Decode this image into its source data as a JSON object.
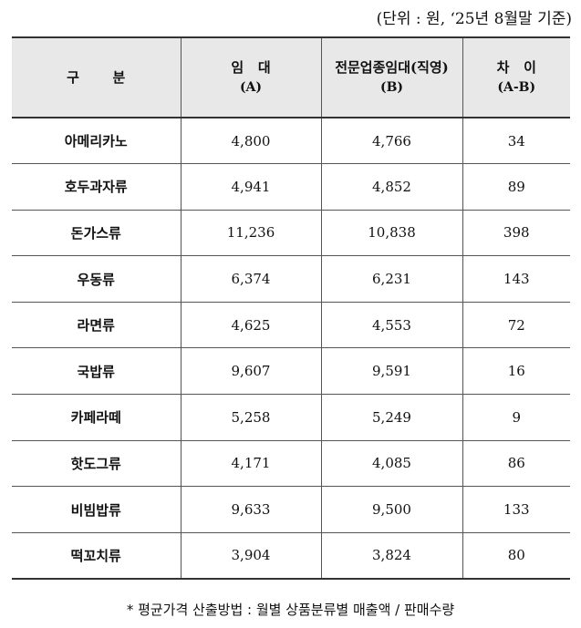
{
  "unit_note": "(단위 : 원, ‘25년 8월말 기준)",
  "headers": [
    {
      "top": "구       분",
      "sub": ""
    },
    {
      "top": "임   대",
      "sub": "(A)"
    },
    {
      "top": "전문업종임대(직영)",
      "sub": "(B)"
    },
    {
      "top": "차   이",
      "sub": "(A-B)"
    }
  ],
  "rows": [
    {
      "category": "아메리카노",
      "a": "4,800",
      "b": "4,766",
      "diff": "34"
    },
    {
      "category": "호두과자류",
      "a": "4,941",
      "b": "4,852",
      "diff": "89"
    },
    {
      "category": "돈가스류",
      "a": "11,236",
      "b": "10,838",
      "diff": "398"
    },
    {
      "category": "우동류",
      "a": "6,374",
      "b": "6,231",
      "diff": "143"
    },
    {
      "category": "라면류",
      "a": "4,625",
      "b": "4,553",
      "diff": "72"
    },
    {
      "category": "국밥류",
      "a": "9,607",
      "b": "9,591",
      "diff": "16"
    },
    {
      "category": "카페라떼",
      "a": "5,258",
      "b": "5,249",
      "diff": "9"
    },
    {
      "category": "핫도그류",
      "a": "4,171",
      "b": "4,085",
      "diff": "86"
    },
    {
      "category": "비빔밥류",
      "a": "9,633",
      "b": "9,500",
      "diff": "133"
    },
    {
      "category": "떡꼬치류",
      "a": "3,904",
      "b": "3,824",
      "diff": "80"
    }
  ],
  "footnote": "* 평균가격 산출방법 : 월별 상품분류별 매출액 / 판매수량"
}
